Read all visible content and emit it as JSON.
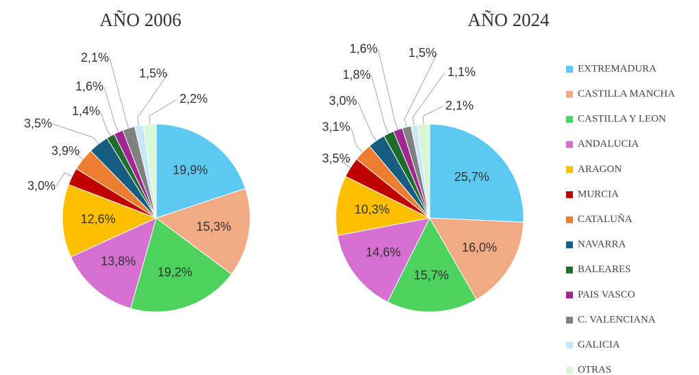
{
  "chart_data": [
    {
      "type": "pie",
      "title": "AÑO 2006",
      "values": [
        19.9,
        15.3,
        19.2,
        13.8,
        12.6,
        3.0,
        3.9,
        3.5,
        1.4,
        1.6,
        2.1,
        1.5,
        2.2
      ],
      "value_labels": [
        "19,9%",
        "15,3%",
        "19,2%",
        "13,8%",
        "12,6%",
        "3,0%",
        "3,9%",
        "3,5%",
        "1,4%",
        "1,6%",
        "2,1%",
        "1,5%",
        "2,2%"
      ]
    },
    {
      "type": "pie",
      "title": "AÑO 2024",
      "values": [
        25.7,
        16.0,
        15.7,
        14.6,
        10.3,
        3.5,
        3.1,
        3.0,
        1.8,
        1.6,
        1.5,
        1.1,
        2.1
      ],
      "value_labels": [
        "25,7%",
        "16,0%",
        "15,7%",
        "14,6%",
        "10,3%",
        "3,5%",
        "3,1%",
        "3,0%",
        "1,8%",
        "1,6%",
        "1,5%",
        "1,1%",
        "2,1%"
      ]
    }
  ],
  "legend": {
    "labels": [
      "EXTREMADURA",
      "CASTILLA MANCHA",
      "CASTILLA Y LEON",
      "ANDALUCIA",
      "ARAGON",
      "MURCIA",
      "CATALUÑA",
      "NAVARRA",
      "BALEARES",
      "PAIS VASCO",
      "C. VALENCIANA",
      "GALICIA",
      "OTRAS"
    ],
    "colors": [
      "#5bc9f1",
      "#f2aa84",
      "#4cd25d",
      "#d56fd0",
      "#fdbf00",
      "#c00000",
      "#ed7d31",
      "#155e80",
      "#1f6b2c",
      "#a0278f",
      "#808080",
      "#c7e7f6",
      "#d8f5d4"
    ]
  }
}
